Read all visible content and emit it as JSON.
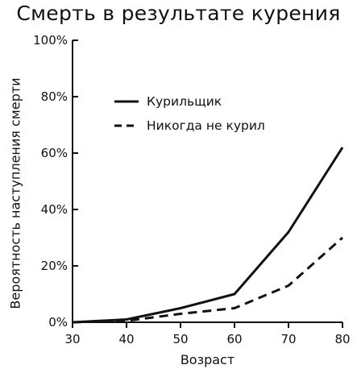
{
  "chart_data": {
    "type": "line",
    "title": "Смерть в результате курения",
    "xlabel": "Возраст",
    "ylabel": "Вероятность наступления смерти",
    "x": [
      30,
      40,
      50,
      60,
      70,
      80
    ],
    "x_ticks": [
      "30",
      "40",
      "50",
      "60",
      "70",
      "80"
    ],
    "xlim": [
      30,
      80
    ],
    "y_ticks": [
      "0%",
      "20%",
      "40%",
      "60%",
      "80%",
      "100%"
    ],
    "ylim": [
      0,
      100
    ],
    "y_unit": "%",
    "grid": false,
    "legend_position": "top-left",
    "series": [
      {
        "name": "Курильщик",
        "line_style": "solid",
        "color": "#111111",
        "values": [
          0,
          1,
          5,
          10,
          32,
          62
        ]
      },
      {
        "name": "Никогда не курил",
        "line_style": "dashed",
        "color": "#111111",
        "values": [
          0,
          0.5,
          3,
          5,
          13,
          30
        ]
      }
    ]
  }
}
